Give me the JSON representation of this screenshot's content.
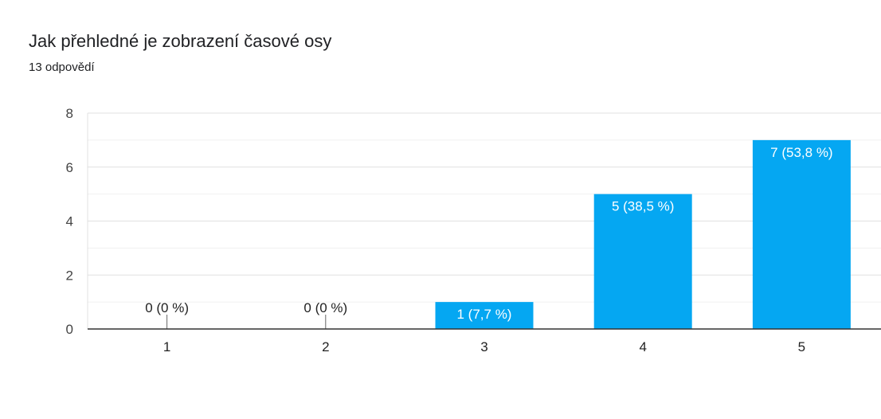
{
  "title": "Jak přehledné je zobrazení časové osy",
  "subtitle": "13 odpovědí",
  "chart_data": {
    "type": "bar",
    "categories": [
      "1",
      "2",
      "3",
      "4",
      "5"
    ],
    "values": [
      0,
      0,
      1,
      5,
      7
    ],
    "data_labels": [
      "0 (0 %)",
      "0 (0 %)",
      "1 (7,7 %)",
      "5 (38,5 %)",
      "7 (53,8 %)"
    ],
    "ylim": [
      0,
      8
    ],
    "yticks": [
      "0",
      "2",
      "4",
      "6",
      "8"
    ],
    "grid": true,
    "bar_color": "#05a7f2"
  }
}
